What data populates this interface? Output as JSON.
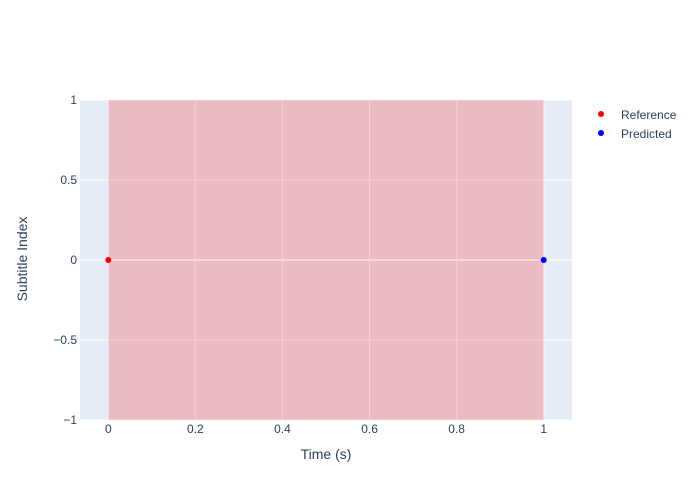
{
  "chart_data": {
    "type": "scatter",
    "title": "",
    "xlabel": "Time (s)",
    "ylabel": "Subtitle Index",
    "xlim": [
      -0.065,
      1.065
    ],
    "ylim": [
      -1,
      1
    ],
    "x_ticks": [
      0,
      0.2,
      0.4,
      0.6,
      0.8,
      1
    ],
    "x_tick_labels": [
      "0",
      "0.2",
      "0.4",
      "0.6",
      "0.8",
      "1"
    ],
    "y_ticks": [
      1,
      0.5,
      0,
      -0.5,
      -1
    ],
    "y_tick_labels": [
      "1",
      "0.5",
      "0",
      "−0.5",
      "−1"
    ],
    "grid": true,
    "legend_position": "top-right",
    "shaded_interval": {
      "x0": 0,
      "x1": 1,
      "y0": -1,
      "y1": 1,
      "color": "#ff0000",
      "opacity": 0.2
    },
    "series": [
      {
        "name": "Reference",
        "color": "#ff0000",
        "x": [
          0
        ],
        "y": [
          0
        ]
      },
      {
        "name": "Predicted",
        "color": "#0000ff",
        "x": [
          1
        ],
        "y": [
          0
        ]
      }
    ]
  }
}
